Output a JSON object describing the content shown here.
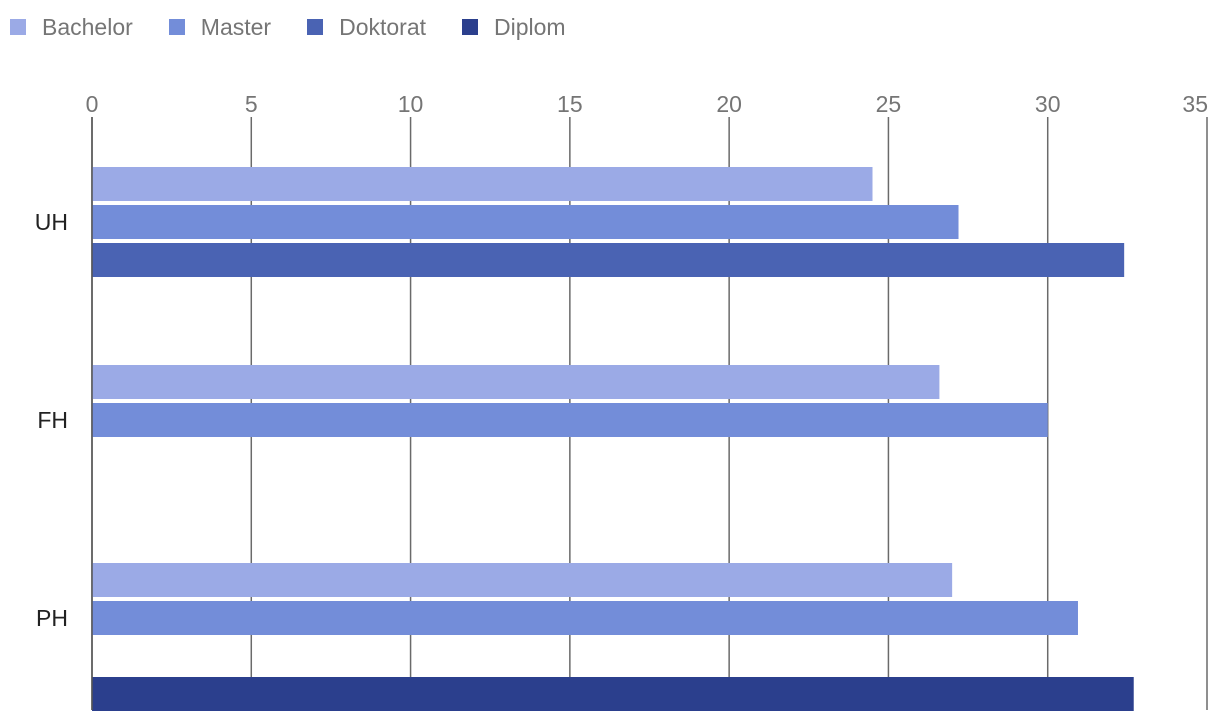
{
  "chart_data": {
    "type": "bar",
    "orientation": "horizontal",
    "categories": [
      "UH",
      "FH",
      "PH"
    ],
    "series": [
      {
        "name": "Bachelor",
        "color": "#9baae6",
        "values": [
          24.5,
          26.6,
          27.0
        ]
      },
      {
        "name": "Master",
        "color": "#738dd9",
        "values": [
          27.2,
          30.0,
          30.95
        ]
      },
      {
        "name": "Doktorat",
        "color": "#4a63b3",
        "values": [
          32.4,
          null,
          null
        ]
      },
      {
        "name": "Diplom",
        "color": "#2b3f8d",
        "values": [
          null,
          null,
          32.7
        ]
      }
    ],
    "xlim": [
      0,
      35
    ],
    "x_ticks": [
      0,
      5,
      10,
      15,
      20,
      25,
      30,
      35
    ],
    "x_tick_labels": [
      "0",
      "5",
      "10",
      "15",
      "20",
      "25",
      "30",
      "35"
    ],
    "grid": true,
    "legend_position": "top-left",
    "title": "",
    "xlabel": "",
    "ylabel": ""
  }
}
